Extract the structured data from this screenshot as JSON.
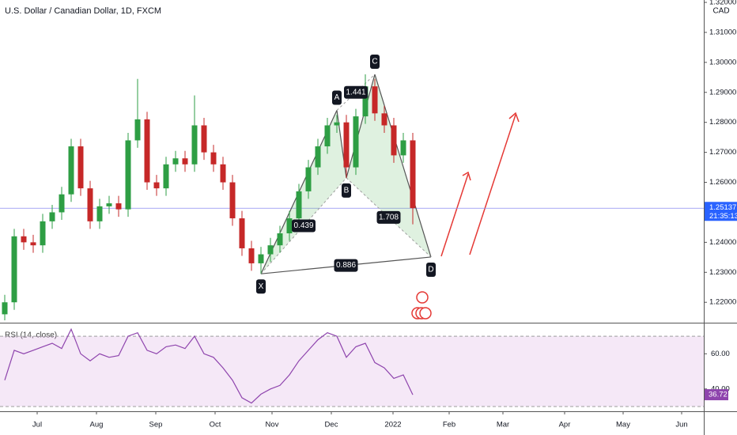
{
  "chart_data": [
    {
      "type": "candlestick",
      "title": "U.S. Dollar / Canadian Dollar, 1D, FXCM",
      "currency": "CAD",
      "up_color": "#2e9e44",
      "down_color": "#c62828",
      "x": [
        1.5,
        4.5,
        7.5,
        10.5,
        13.5,
        16.5,
        19.5,
        22.5,
        25.5,
        28.5,
        31.5,
        34.5,
        37.5,
        40.5,
        43.5,
        46.5,
        49.5,
        52.5,
        55.5,
        58.5,
        61.5,
        64.5,
        67.5,
        70.5,
        73.5,
        76.5,
        79.5,
        82.5,
        85.5,
        88.5,
        91.5,
        94.5,
        97.5,
        100.5,
        103.5,
        106.5,
        109.5,
        112.5,
        115.5,
        118.5,
        121.5,
        124.5,
        127.5,
        130.5
      ],
      "open": [
        1.216,
        1.22,
        1.242,
        1.24,
        1.239,
        1.247,
        1.25,
        1.256,
        1.272,
        1.258,
        1.247,
        1.252,
        1.253,
        1.251,
        1.274,
        1.281,
        1.26,
        1.258,
        1.266,
        1.268,
        1.266,
        1.279,
        1.27,
        1.266,
        1.26,
        1.248,
        1.238,
        1.233,
        1.236,
        1.239,
        1.243,
        1.248,
        1.257,
        1.265,
        1.272,
        1.279,
        1.28,
        1.265,
        1.282,
        1.292,
        1.283,
        1.279,
        1.269,
        1.274
      ],
      "high": [
        1.2225,
        1.2445,
        1.2445,
        1.2425,
        1.2495,
        1.2525,
        1.2585,
        1.2745,
        1.2745,
        1.2605,
        1.2545,
        1.2555,
        1.2555,
        1.2765,
        1.2945,
        1.2835,
        1.2625,
        1.2685,
        1.2705,
        1.2705,
        1.289,
        1.2815,
        1.2725,
        1.2685,
        1.2625,
        1.2505,
        1.2405,
        1.2385,
        1.2415,
        1.2455,
        1.2505,
        1.2595,
        1.2675,
        1.2745,
        1.2815,
        1.2825,
        1.2825,
        1.2845,
        1.296,
        1.2945,
        1.2855,
        1.2815,
        1.2765,
        1.2765
      ],
      "low": [
        1.214,
        1.2175,
        1.2375,
        1.2365,
        1.2365,
        1.2445,
        1.2475,
        1.2535,
        1.2555,
        1.2445,
        1.2445,
        1.2495,
        1.2485,
        1.2485,
        1.2715,
        1.2575,
        1.2555,
        1.2555,
        1.2635,
        1.2635,
        1.2635,
        1.2675,
        1.2635,
        1.2575,
        1.2455,
        1.2355,
        1.2305,
        1.2295,
        1.2335,
        1.2365,
        1.2405,
        1.2455,
        1.2545,
        1.2625,
        1.2695,
        1.2765,
        1.2615,
        1.2625,
        1.2795,
        1.2805,
        1.2765,
        1.2665,
        1.2665,
        1.246
      ],
      "close": [
        1.22,
        1.242,
        1.24,
        1.239,
        1.247,
        1.25,
        1.256,
        1.272,
        1.258,
        1.247,
        1.252,
        1.253,
        1.251,
        1.274,
        1.281,
        1.26,
        1.258,
        1.266,
        1.268,
        1.266,
        1.279,
        1.27,
        1.266,
        1.26,
        1.248,
        1.238,
        1.233,
        1.236,
        1.239,
        1.243,
        1.248,
        1.257,
        1.265,
        1.272,
        1.279,
        1.28,
        1.265,
        1.282,
        1.292,
        1.283,
        1.279,
        1.269,
        1.274,
        1.2514
      ],
      "xlim": [
        0,
        222.5
      ],
      "ylim": [
        1.2132,
        1.3208
      ],
      "yticks": [
        {
          "value": 1.32,
          "label": "1.32000"
        },
        {
          "value": 1.31,
          "label": "1.31000"
        },
        {
          "value": 1.3,
          "label": "1.30000"
        },
        {
          "value": 1.29,
          "label": "1.29000"
        },
        {
          "value": 1.28,
          "label": "1.28000"
        },
        {
          "value": 1.27,
          "label": "1.27000"
        },
        {
          "value": 1.26,
          "label": "1.26000"
        },
        {
          "value": 1.25,
          "label": "1.25000"
        },
        {
          "value": 1.24,
          "label": "1.24000"
        },
        {
          "value": 1.23,
          "label": "1.23000"
        },
        {
          "value": 1.22,
          "label": "1.22000"
        }
      ],
      "xticks": [
        {
          "value": 11.75,
          "label": "Jul"
        },
        {
          "value": 30.5,
          "label": "Aug"
        },
        {
          "value": 49.25,
          "label": "Sep"
        },
        {
          "value": 68,
          "label": "Oct"
        },
        {
          "value": 86,
          "label": "Nov"
        },
        {
          "value": 104.75,
          "label": "Dec"
        },
        {
          "value": 124.25,
          "label": "2022"
        },
        {
          "value": 142,
          "label": "Feb"
        },
        {
          "value": 159,
          "label": "Mar"
        },
        {
          "value": 178.5,
          "label": "Apr"
        },
        {
          "value": 197,
          "label": "May"
        },
        {
          "value": 215.5,
          "label": "Jun"
        }
      ],
      "last_price": 1.25137,
      "countdown": "21:35:13",
      "pattern": {
        "labels": [
          "X",
          "A",
          "B",
          "C",
          "D"
        ],
        "x": [
          82.5,
          106.5,
          109.5,
          118.5,
          136.25
        ],
        "y": [
          1.2295,
          1.284,
          1.2615,
          1.296,
          1.2351
        ],
        "ratios": [
          0.439,
          1.441,
          1.708,
          0.886
        ]
      }
    },
    {
      "type": "line",
      "title": "RSI (14, close)",
      "color": "#8e44ad",
      "x": [
        1.5,
        4.5,
        7.5,
        10.5,
        13.5,
        16.5,
        19.5,
        22.5,
        25.5,
        28.5,
        31.5,
        34.5,
        37.5,
        40.5,
        43.5,
        46.5,
        49.5,
        52.5,
        55.5,
        58.5,
        61.5,
        64.5,
        67.5,
        70.5,
        73.5,
        76.5,
        79.5,
        82.5,
        85.5,
        88.5,
        91.5,
        94.5,
        97.5,
        100.5,
        103.5,
        106.5,
        109.5,
        112.5,
        115.5,
        118.5,
        121.5,
        124.5,
        127.5,
        130.5
      ],
      "values": [
        45,
        62,
        60,
        62,
        64,
        66,
        63,
        74,
        60,
        56,
        60,
        58,
        59,
        70,
        72,
        62,
        60,
        64,
        65,
        63,
        70,
        60,
        58,
        52,
        45,
        35,
        32,
        37,
        40,
        42,
        48,
        56,
        62,
        68,
        72,
        70,
        58,
        64,
        66,
        55,
        52,
        46,
        48,
        36.72
      ],
      "band": [
        30,
        70
      ],
      "xlim": [
        0,
        222.5
      ],
      "ylim": [
        27.3,
        76.8
      ],
      "yticks": [
        {
          "value": 60,
          "label": "60.00"
        },
        {
          "value": 40,
          "label": "40.00"
        }
      ]
    }
  ]
}
